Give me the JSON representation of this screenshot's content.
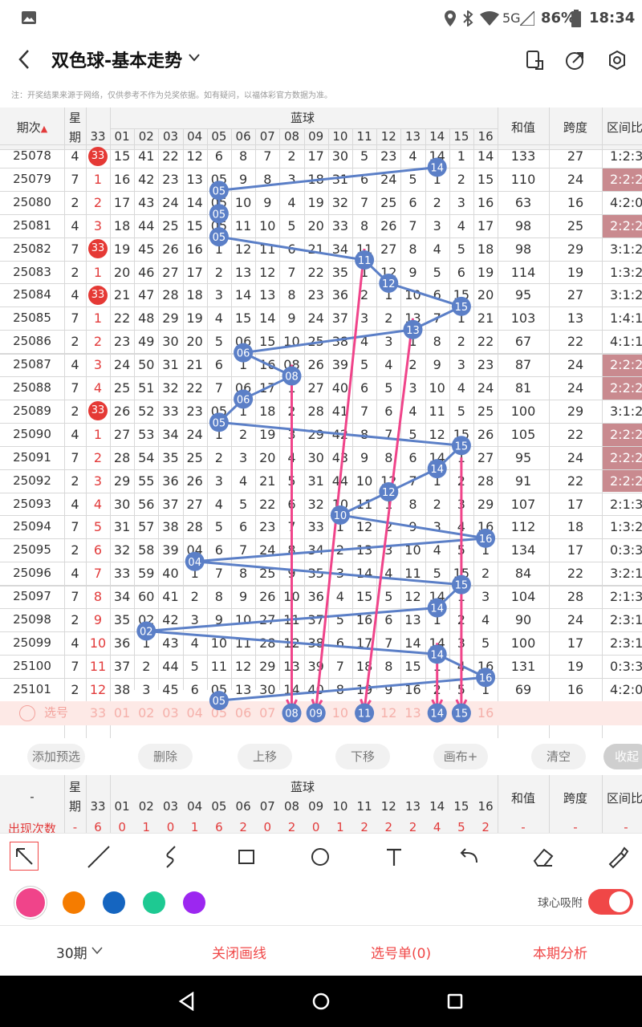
{
  "status": {
    "network": "5G",
    "battery": "86%",
    "time": "18:34"
  },
  "header": {
    "title": "双色球-基本走势"
  },
  "notice": "注：开奖结果来源于网络，仅供参考不作为兑奖依据。如有疑问，以福体彩官方数据为准。",
  "table": {
    "headers": {
      "period": "期次",
      "week_top": "星",
      "week_bottom": "期",
      "blue": "蓝球",
      "sum": "和值",
      "span": "跨度",
      "ratio": "区间比"
    },
    "columns": [
      "33",
      "01",
      "02",
      "03",
      "04",
      "05",
      "06",
      "07",
      "08",
      "09",
      "10",
      "11",
      "12",
      "13",
      "14",
      "15",
      "16"
    ],
    "rows": [
      {
        "p": "25078",
        "w": "4",
        "c": [
          "33",
          "15",
          "41",
          "22",
          "12",
          "6",
          "8",
          "7",
          "2",
          "17",
          "30",
          "5",
          "23",
          "4",
          "14",
          "1",
          "14"
        ],
        "sum": "133",
        "span": "27",
        "ratio": "1:2:3"
      },
      {
        "p": "25079",
        "w": "7",
        "c": [
          "1",
          "16",
          "42",
          "23",
          "13",
          "05",
          "9",
          "8",
          "3",
          "18",
          "31",
          "6",
          "24",
          "5",
          "1",
          "2",
          "15"
        ],
        "sum": "110",
        "span": "24",
        "ratio": "2:2:2"
      },
      {
        "p": "25080",
        "w": "2",
        "c": [
          "2",
          "17",
          "43",
          "24",
          "14",
          "05",
          "10",
          "9",
          "4",
          "19",
          "32",
          "7",
          "25",
          "6",
          "2",
          "3",
          "16"
        ],
        "sum": "63",
        "span": "16",
        "ratio": "4:2:0"
      },
      {
        "p": "25081",
        "w": "4",
        "c": [
          "3",
          "18",
          "44",
          "25",
          "15",
          "05",
          "11",
          "10",
          "5",
          "20",
          "33",
          "8",
          "26",
          "7",
          "3",
          "4",
          "17"
        ],
        "sum": "98",
        "span": "25",
        "ratio": "2:2:2"
      },
      {
        "p": "25082",
        "w": "7",
        "c": [
          "33",
          "19",
          "45",
          "26",
          "16",
          "1",
          "12",
          "11",
          "6",
          "21",
          "34",
          "11",
          "27",
          "8",
          "4",
          "5",
          "18"
        ],
        "sum": "98",
        "span": "29",
        "ratio": "3:1:2"
      },
      {
        "p": "25083",
        "w": "2",
        "c": [
          "1",
          "20",
          "46",
          "27",
          "17",
          "2",
          "13",
          "12",
          "7",
          "22",
          "35",
          "1",
          "12",
          "9",
          "5",
          "6",
          "19"
        ],
        "sum": "114",
        "span": "19",
        "ratio": "1:3:2"
      },
      {
        "p": "25084",
        "w": "4",
        "c": [
          "33",
          "21",
          "47",
          "28",
          "18",
          "3",
          "14",
          "13",
          "8",
          "23",
          "36",
          "2",
          "1",
          "10",
          "6",
          "15",
          "20"
        ],
        "sum": "95",
        "span": "27",
        "ratio": "3:1:2"
      },
      {
        "p": "25085",
        "w": "7",
        "c": [
          "1",
          "22",
          "48",
          "29",
          "19",
          "4",
          "15",
          "14",
          "9",
          "24",
          "37",
          "3",
          "2",
          "13",
          "7",
          "1",
          "21"
        ],
        "sum": "103",
        "span": "13",
        "ratio": "1:4:1"
      },
      {
        "p": "25086",
        "w": "2",
        "c": [
          "2",
          "23",
          "49",
          "30",
          "20",
          "5",
          "06",
          "15",
          "10",
          "25",
          "38",
          "4",
          "3",
          "1",
          "8",
          "2",
          "22"
        ],
        "sum": "67",
        "span": "22",
        "ratio": "4:1:1"
      },
      {
        "p": "25087",
        "w": "4",
        "c": [
          "3",
          "24",
          "50",
          "31",
          "21",
          "6",
          "1",
          "16",
          "08",
          "26",
          "39",
          "5",
          "4",
          "2",
          "9",
          "3",
          "23"
        ],
        "sum": "87",
        "span": "24",
        "ratio": "2:2:2"
      },
      {
        "p": "25088",
        "w": "7",
        "c": [
          "4",
          "25",
          "51",
          "32",
          "22",
          "7",
          "06",
          "17",
          "1",
          "27",
          "40",
          "6",
          "5",
          "3",
          "10",
          "4",
          "24"
        ],
        "sum": "81",
        "span": "24",
        "ratio": "2:2:2"
      },
      {
        "p": "25089",
        "w": "2",
        "c": [
          "33",
          "26",
          "52",
          "33",
          "23",
          "05",
          "1",
          "18",
          "2",
          "28",
          "41",
          "7",
          "6",
          "4",
          "11",
          "5",
          "25"
        ],
        "sum": "100",
        "span": "29",
        "ratio": "3:1:2"
      },
      {
        "p": "25090",
        "w": "4",
        "c": [
          "1",
          "27",
          "53",
          "34",
          "24",
          "1",
          "2",
          "19",
          "3",
          "29",
          "42",
          "8",
          "7",
          "5",
          "12",
          "15",
          "26"
        ],
        "sum": "105",
        "span": "22",
        "ratio": "2:2:2"
      },
      {
        "p": "25091",
        "w": "7",
        "c": [
          "2",
          "28",
          "54",
          "35",
          "25",
          "2",
          "3",
          "20",
          "4",
          "30",
          "43",
          "9",
          "8",
          "6",
          "14",
          "1",
          "27"
        ],
        "sum": "95",
        "span": "24",
        "ratio": "2:2:2"
      },
      {
        "p": "25092",
        "w": "2",
        "c": [
          "3",
          "29",
          "55",
          "36",
          "26",
          "3",
          "4",
          "21",
          "5",
          "31",
          "44",
          "10",
          "12",
          "7",
          "1",
          "2",
          "28"
        ],
        "sum": "91",
        "span": "22",
        "ratio": "2:2:2"
      },
      {
        "p": "25093",
        "w": "4",
        "c": [
          "4",
          "30",
          "56",
          "37",
          "27",
          "4",
          "5",
          "22",
          "6",
          "32",
          "10",
          "11",
          "1",
          "8",
          "2",
          "3",
          "29"
        ],
        "sum": "107",
        "span": "17",
        "ratio": "2:1:3"
      },
      {
        "p": "25094",
        "w": "7",
        "c": [
          "5",
          "31",
          "57",
          "38",
          "28",
          "5",
          "6",
          "23",
          "7",
          "33",
          "1",
          "12",
          "2",
          "9",
          "3",
          "4",
          "16"
        ],
        "sum": "112",
        "span": "18",
        "ratio": "1:3:2"
      },
      {
        "p": "25095",
        "w": "2",
        "c": [
          "6",
          "32",
          "58",
          "39",
          "04",
          "6",
          "7",
          "24",
          "8",
          "34",
          "2",
          "13",
          "3",
          "10",
          "4",
          "5",
          "1"
        ],
        "sum": "134",
        "span": "17",
        "ratio": "0:3:3"
      },
      {
        "p": "25096",
        "w": "4",
        "c": [
          "7",
          "33",
          "59",
          "40",
          "1",
          "7",
          "8",
          "25",
          "9",
          "35",
          "3",
          "14",
          "4",
          "11",
          "5",
          "15",
          "2"
        ],
        "sum": "84",
        "span": "22",
        "ratio": "3:2:1"
      },
      {
        "p": "25097",
        "w": "7",
        "c": [
          "8",
          "34",
          "60",
          "41",
          "2",
          "8",
          "9",
          "26",
          "10",
          "36",
          "4",
          "15",
          "5",
          "12",
          "14",
          "1",
          "3"
        ],
        "sum": "104",
        "span": "28",
        "ratio": "2:1:3"
      },
      {
        "p": "25098",
        "w": "2",
        "c": [
          "9",
          "35",
          "02",
          "42",
          "3",
          "9",
          "10",
          "27",
          "11",
          "37",
          "5",
          "16",
          "6",
          "13",
          "1",
          "2",
          "4"
        ],
        "sum": "90",
        "span": "24",
        "ratio": "2:3:1"
      },
      {
        "p": "25099",
        "w": "4",
        "c": [
          "10",
          "36",
          "1",
          "43",
          "4",
          "10",
          "11",
          "28",
          "12",
          "38",
          "6",
          "17",
          "7",
          "14",
          "14",
          "3",
          "5"
        ],
        "sum": "100",
        "span": "17",
        "ratio": "2:3:1"
      },
      {
        "p": "25100",
        "w": "7",
        "c": [
          "11",
          "37",
          "2",
          "44",
          "5",
          "11",
          "12",
          "29",
          "13",
          "39",
          "7",
          "18",
          "8",
          "15",
          "1",
          "4",
          "16"
        ],
        "sum": "131",
        "span": "19",
        "ratio": "0:3:3"
      },
      {
        "p": "25101",
        "w": "2",
        "c": [
          "12",
          "38",
          "3",
          "45",
          "6",
          "05",
          "13",
          "30",
          "14",
          "40",
          "8",
          "19",
          "9",
          "16",
          "2",
          "5",
          "1"
        ],
        "sum": "69",
        "span": "16",
        "ratio": "4:2:0"
      }
    ],
    "select_row": {
      "label": "选号",
      "cells": [
        "33",
        "01",
        "02",
        "03",
        "04",
        "05",
        "06",
        "07",
        "08",
        "09",
        "10",
        "11",
        "12",
        "13",
        "14",
        "15",
        "16"
      ],
      "selected": [
        "08",
        "09",
        "11",
        "14",
        "15"
      ]
    },
    "blue_balls": [
      {
        "r": 0,
        "num": "14"
      },
      {
        "r": 1,
        "num": "05"
      },
      {
        "r": 2,
        "num": "05"
      },
      {
        "r": 3,
        "num": "05"
      },
      {
        "r": 4,
        "num": "11"
      },
      {
        "r": 5,
        "num": "12"
      },
      {
        "r": 6,
        "num": "15"
      },
      {
        "r": 7,
        "num": "13"
      },
      {
        "r": 8,
        "num": "06"
      },
      {
        "r": 9,
        "num": "08"
      },
      {
        "r": 10,
        "num": "06"
      },
      {
        "r": 11,
        "num": "05"
      },
      {
        "r": 12,
        "num": "15"
      },
      {
        "r": 13,
        "num": "14"
      },
      {
        "r": 14,
        "num": "12"
      },
      {
        "r": 15,
        "num": "10"
      },
      {
        "r": 16,
        "num": "16"
      },
      {
        "r": 17,
        "num": "04"
      },
      {
        "r": 18,
        "num": "15"
      },
      {
        "r": 19,
        "num": "14"
      },
      {
        "r": 20,
        "num": "02"
      },
      {
        "r": 21,
        "num": "14"
      },
      {
        "r": 22,
        "num": "16"
      },
      {
        "r": 23,
        "num": "05"
      }
    ],
    "red_ball_rows": [
      0,
      4,
      6,
      11
    ]
  },
  "actions": [
    "添加预选",
    "删除",
    "上移",
    "下移",
    "画布+",
    "清空",
    "收起"
  ],
  "summary": {
    "headers": {
      "dash": "-",
      "week_top": "星",
      "week_bottom": "期",
      "blue": "蓝球",
      "sum": "和值",
      "span": "跨度",
      "ratio": "区间比"
    },
    "row_label": "出现次数",
    "row_values": [
      "-",
      "6",
      "0",
      "1",
      "0",
      "1",
      "6",
      "2",
      "0",
      "2",
      "0",
      "1",
      "2",
      "2",
      "2",
      "4",
      "5",
      "2",
      "-",
      "-",
      "-"
    ]
  },
  "colors": {
    "pen": "#f0448a",
    "palette": [
      "#f0448a",
      "#f57c00",
      "#1565c0",
      "#1ec992",
      "#9c27f0"
    ],
    "blue": "#5b7fc7",
    "accent": "#f04747"
  },
  "toggle": {
    "label": "球心吸附",
    "on": true
  },
  "bottom": {
    "period": "30期",
    "close": "关闭画线",
    "list": "选号单(0)",
    "analysis": "本期分析"
  }
}
